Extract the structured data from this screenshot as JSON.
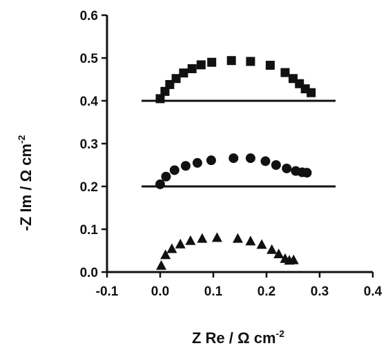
{
  "chart_data": {
    "type": "scatter",
    "title": "",
    "xlabel": {
      "text": "Z Re / Ω cm",
      "superscript": "-2"
    },
    "ylabel": {
      "text": "-Z Im / Ω cm",
      "superscript": "-2"
    },
    "xlim": [
      -0.1,
      0.4
    ],
    "ylim": [
      0.0,
      0.6
    ],
    "x_ticks": [
      -0.1,
      0.0,
      0.1,
      0.2,
      0.3,
      0.4
    ],
    "y_ticks": [
      0.0,
      0.1,
      0.2,
      0.3,
      0.4,
      0.5,
      0.6
    ],
    "x_tick_labels": [
      "-0.1",
      "0.0",
      "0.1",
      "0.2",
      "0.3",
      "0.4"
    ],
    "y_tick_labels": [
      "0.0",
      "0.1",
      "0.2",
      "0.3",
      "0.4",
      "0.5",
      "0.6"
    ],
    "grid": false,
    "legend": "none",
    "baselines": [
      {
        "y": 0.4,
        "x": [
          -0.035,
          0.33
        ]
      },
      {
        "y": 0.2,
        "x": [
          -0.035,
          0.33
        ]
      }
    ],
    "series": [
      {
        "marker": "square",
        "color": "#111111",
        "points": [
          [
            0.0,
            0.405
          ],
          [
            0.009,
            0.422
          ],
          [
            0.018,
            0.438
          ],
          [
            0.03,
            0.452
          ],
          [
            0.044,
            0.465
          ],
          [
            0.06,
            0.475
          ],
          [
            0.077,
            0.484
          ],
          [
            0.097,
            0.49
          ],
          [
            0.134,
            0.494
          ],
          [
            0.17,
            0.492
          ],
          [
            0.207,
            0.483
          ],
          [
            0.235,
            0.466
          ],
          [
            0.25,
            0.452
          ],
          [
            0.262,
            0.44
          ],
          [
            0.273,
            0.428
          ],
          [
            0.284,
            0.419
          ]
        ]
      },
      {
        "marker": "circle",
        "color": "#111111",
        "points": [
          [
            0.0,
            0.205
          ],
          [
            0.011,
            0.223
          ],
          [
            0.027,
            0.238
          ],
          [
            0.048,
            0.248
          ],
          [
            0.07,
            0.255
          ],
          [
            0.096,
            0.261
          ],
          [
            0.138,
            0.266
          ],
          [
            0.17,
            0.266
          ],
          [
            0.198,
            0.259
          ],
          [
            0.218,
            0.25
          ],
          [
            0.238,
            0.242
          ],
          [
            0.255,
            0.236
          ],
          [
            0.267,
            0.233
          ],
          [
            0.276,
            0.232
          ]
        ]
      },
      {
        "marker": "triangle",
        "color": "#111111",
        "points": [
          [
            0.002,
            0.015
          ],
          [
            0.01,
            0.04
          ],
          [
            0.022,
            0.054
          ],
          [
            0.038,
            0.065
          ],
          [
            0.057,
            0.073
          ],
          [
            0.079,
            0.078
          ],
          [
            0.107,
            0.08
          ],
          [
            0.146,
            0.078
          ],
          [
            0.17,
            0.072
          ],
          [
            0.191,
            0.064
          ],
          [
            0.21,
            0.052
          ],
          [
            0.223,
            0.042
          ],
          [
            0.235,
            0.031
          ],
          [
            0.243,
            0.027
          ],
          [
            0.251,
            0.028
          ]
        ]
      }
    ]
  }
}
